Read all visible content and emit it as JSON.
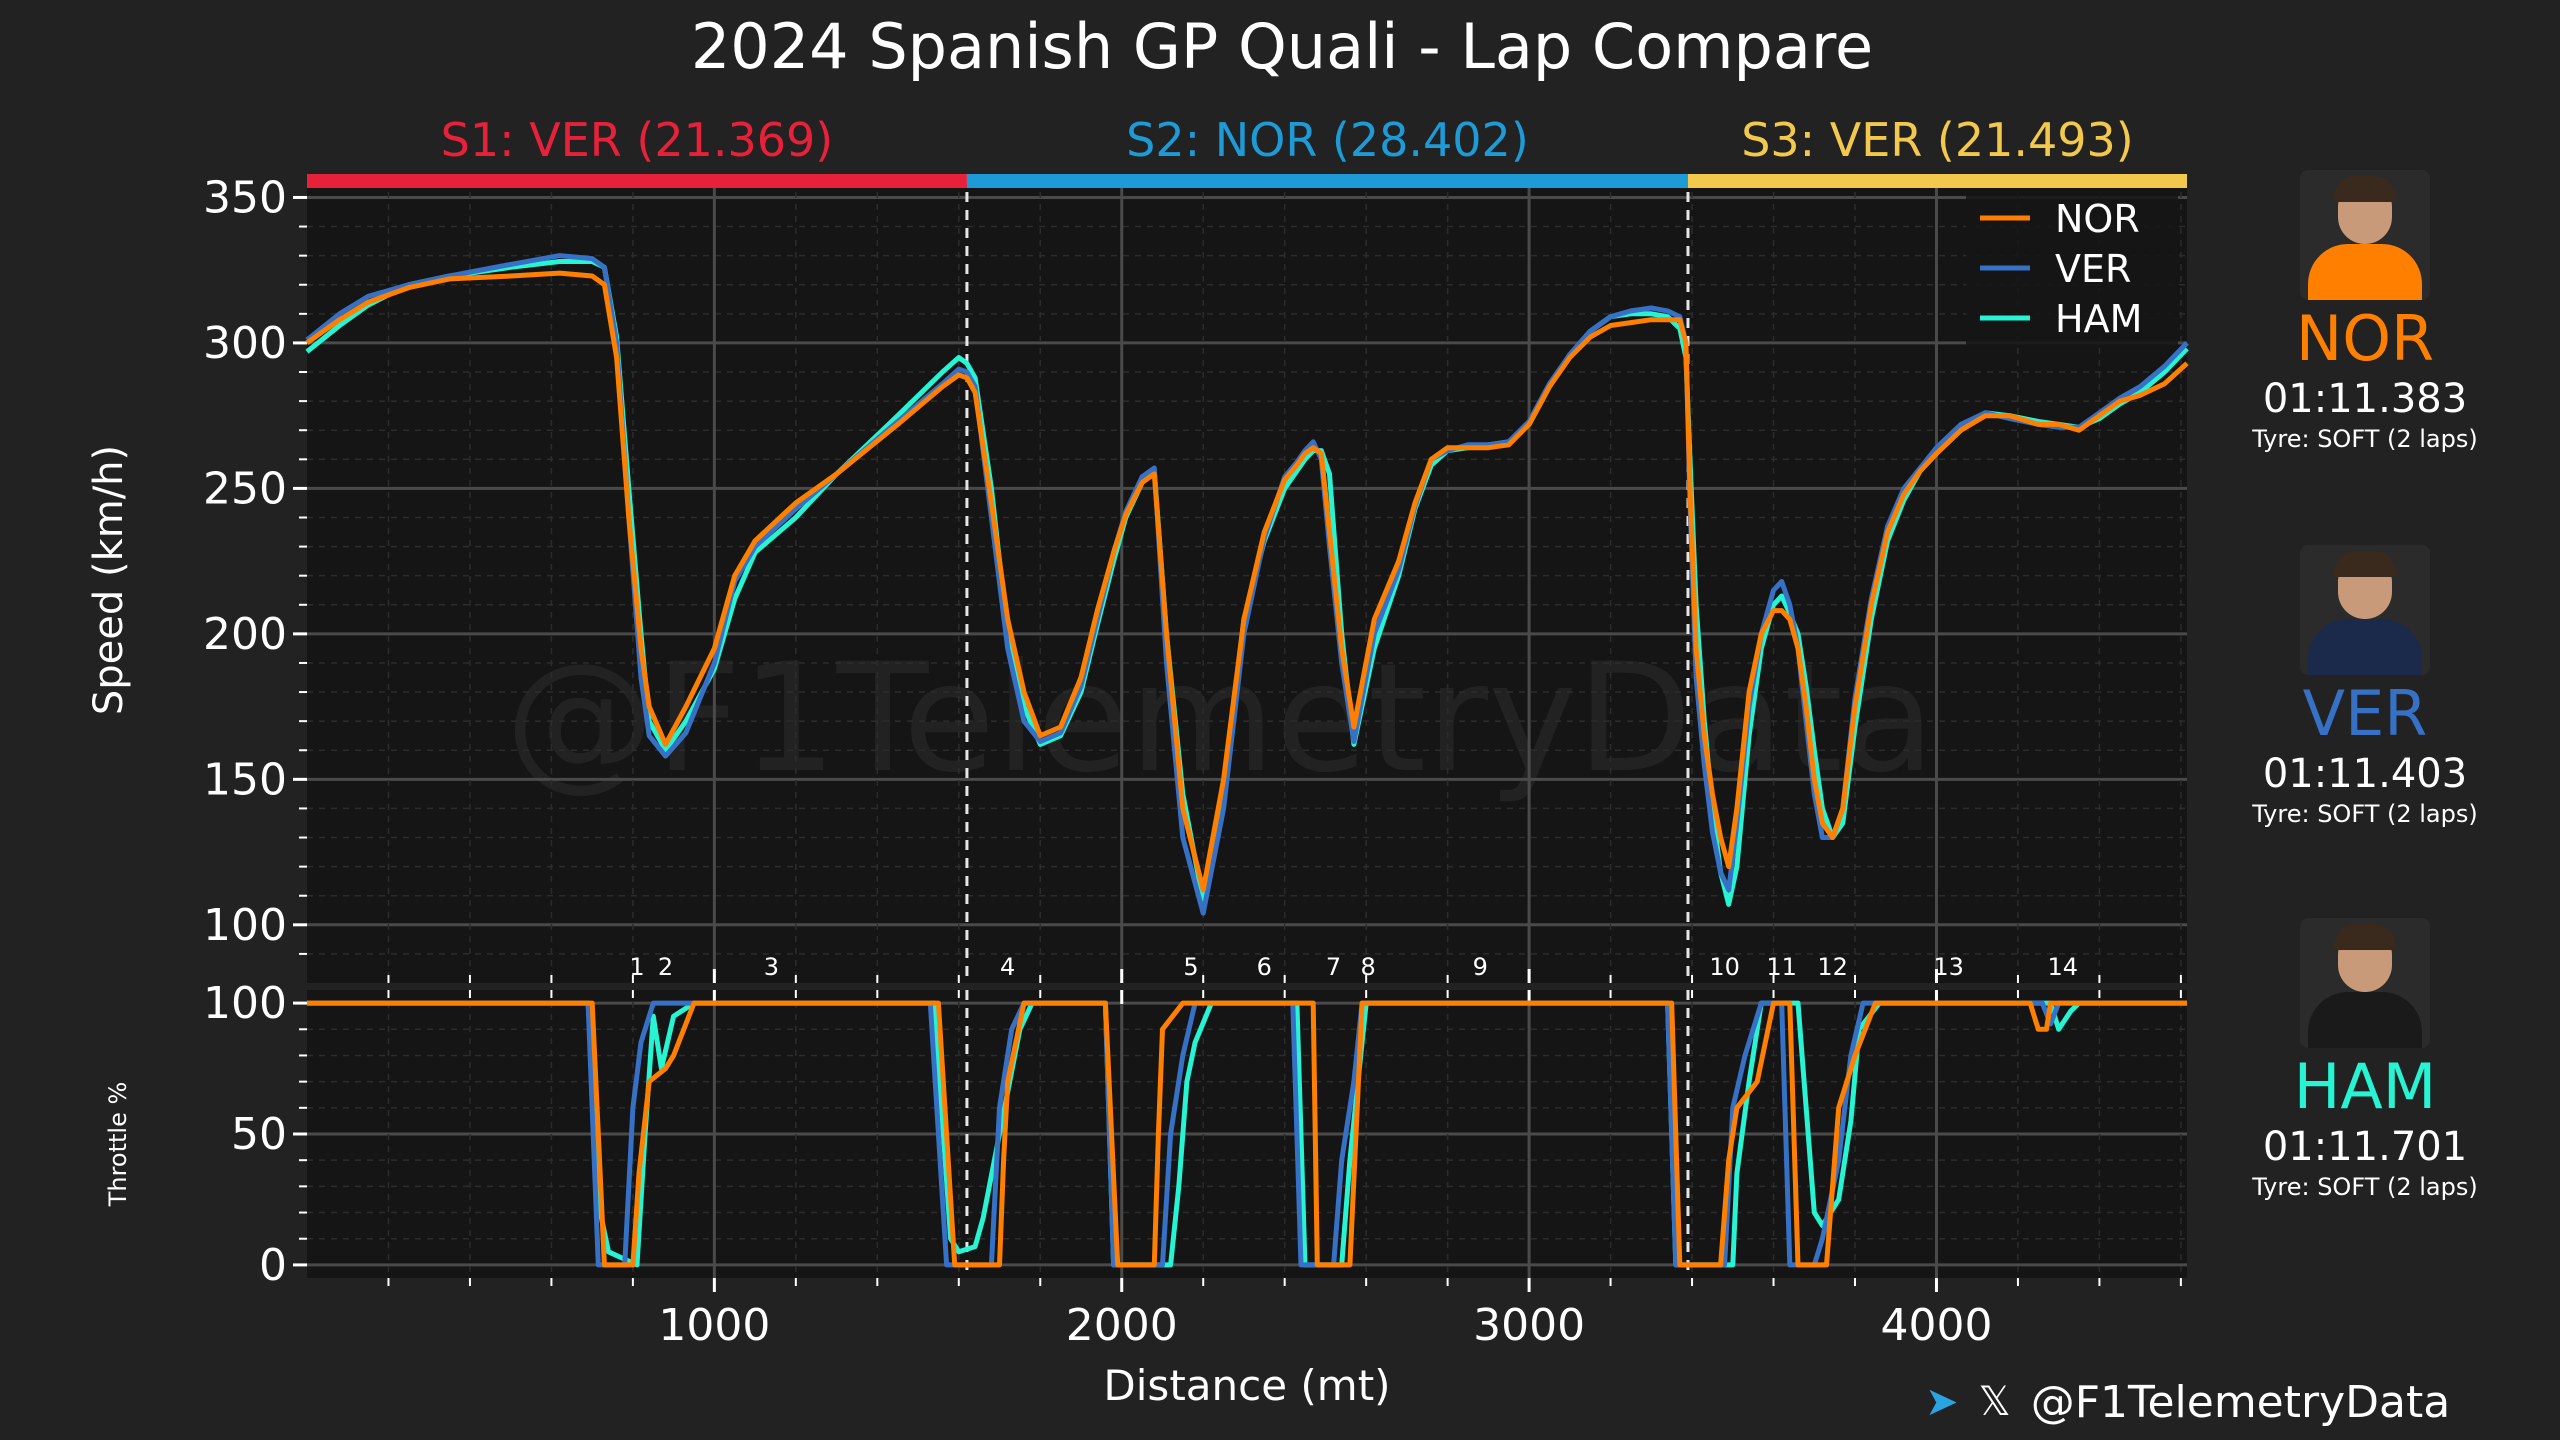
{
  "title": "2024 Spanish GP Quali - Lap Compare",
  "watermark": "@F1TelemetryData",
  "sectors": [
    {
      "label": "S1: VER (21.369)",
      "color": "#e8213a",
      "start": 0,
      "end": 1620
    },
    {
      "label": "S2: NOR (28.402)",
      "color": "#1e9ad6",
      "start": 1620,
      "end": 3390
    },
    {
      "label": "S3: VER (21.493)",
      "color": "#f2c94c",
      "start": 3390,
      "end": 4615
    }
  ],
  "drivers": [
    {
      "code": "NOR",
      "color": "#ff8000",
      "laptime": "01:11.383",
      "tyre": "Tyre: SOFT (2 laps)",
      "suit": "#ff8000"
    },
    {
      "code": "VER",
      "color": "#3671c6",
      "laptime": "01:11.403",
      "tyre": "Tyre: SOFT (2 laps)",
      "suit": "#1b2a4a"
    },
    {
      "code": "HAM",
      "color": "#27f4d2",
      "laptime": "01:11.701",
      "tyre": "Tyre: SOFT (2 laps)",
      "suit": "#1a1a1a"
    }
  ],
  "credit": {
    "handle": "@F1TelemetryData",
    "telegram_icon": "telegram-icon",
    "x_icon": "x-icon"
  },
  "chart_data": [
    {
      "type": "line",
      "title": "2024 Spanish GP Quali - Lap Compare",
      "xlabel": "",
      "ylabel": "Speed (km/h)",
      "xlim": [
        0,
        4615
      ],
      "ylim": [
        80,
        356
      ],
      "yticks": [
        100,
        150,
        200,
        250,
        300,
        350
      ],
      "grid": true,
      "legend": "top-right",
      "corners": [
        {
          "label": "1",
          "x": 810
        },
        {
          "label": "2",
          "x": 880
        },
        {
          "label": "3",
          "x": 1140
        },
        {
          "label": "4",
          "x": 1720
        },
        {
          "label": "5",
          "x": 2170
        },
        {
          "label": "6",
          "x": 2350
        },
        {
          "label": "7",
          "x": 2520
        },
        {
          "label": "8",
          "x": 2605
        },
        {
          "label": "9",
          "x": 2880
        },
        {
          "label": "10",
          "x": 3480
        },
        {
          "label": "11",
          "x": 3620
        },
        {
          "label": "12",
          "x": 3745
        },
        {
          "label": "13",
          "x": 4030
        },
        {
          "label": "14",
          "x": 4310
        }
      ],
      "series": [
        {
          "name": "NOR",
          "x": [
            0,
            80,
            150,
            250,
            350,
            500,
            620,
            700,
            730,
            760,
            790,
            820,
            840,
            880,
            930,
            1000,
            1050,
            1100,
            1200,
            1300,
            1450,
            1560,
            1600,
            1620,
            1640,
            1680,
            1720,
            1760,
            1800,
            1850,
            1900,
            1940,
            1980,
            2010,
            2050,
            2080,
            2110,
            2150,
            2200,
            2250,
            2300,
            2350,
            2400,
            2430,
            2450,
            2470,
            2490,
            2510,
            2540,
            2570,
            2620,
            2680,
            2720,
            2760,
            2800,
            2850,
            2900,
            2950,
            3000,
            3050,
            3100,
            3150,
            3200,
            3250,
            3300,
            3340,
            3370,
            3385,
            3395,
            3410,
            3430,
            3450,
            3470,
            3490,
            3510,
            3540,
            3570,
            3600,
            3620,
            3640,
            3660,
            3680,
            3700,
            3720,
            3745,
            3770,
            3800,
            3840,
            3880,
            3920,
            3960,
            4000,
            4060,
            4120,
            4180,
            4250,
            4300,
            4350,
            4400,
            4450,
            4500,
            4560,
            4615
          ],
          "y": [
            300,
            308,
            314,
            319,
            322,
            323,
            324,
            323,
            320,
            295,
            240,
            195,
            175,
            162,
            175,
            195,
            220,
            232,
            245,
            255,
            272,
            285,
            289,
            288,
            283,
            245,
            205,
            180,
            165,
            168,
            185,
            208,
            228,
            241,
            252,
            255,
            200,
            140,
            112,
            150,
            205,
            235,
            253,
            258,
            262,
            264,
            262,
            235,
            195,
            168,
            205,
            225,
            245,
            260,
            264,
            264,
            264,
            265,
            272,
            285,
            295,
            302,
            306,
            307,
            308,
            308,
            308,
            300,
            250,
            195,
            165,
            145,
            130,
            120,
            140,
            180,
            200,
            208,
            208,
            205,
            195,
            175,
            150,
            135,
            130,
            140,
            175,
            210,
            235,
            248,
            256,
            262,
            270,
            275,
            275,
            272,
            272,
            270,
            275,
            280,
            282,
            286,
            293
          ]
        },
        {
          "name": "VER",
          "x": [
            0,
            80,
            150,
            250,
            350,
            500,
            620,
            700,
            730,
            760,
            790,
            820,
            840,
            880,
            930,
            1000,
            1050,
            1100,
            1200,
            1300,
            1450,
            1560,
            1600,
            1620,
            1640,
            1680,
            1720,
            1760,
            1800,
            1850,
            1900,
            1940,
            1980,
            2010,
            2050,
            2080,
            2110,
            2150,
            2200,
            2250,
            2300,
            2350,
            2400,
            2430,
            2450,
            2470,
            2490,
            2510,
            2540,
            2570,
            2620,
            2680,
            2720,
            2760,
            2800,
            2850,
            2900,
            2950,
            3000,
            3050,
            3100,
            3150,
            3200,
            3250,
            3300,
            3340,
            3370,
            3385,
            3395,
            3410,
            3430,
            3450,
            3470,
            3490,
            3510,
            3540,
            3570,
            3600,
            3620,
            3640,
            3660,
            3680,
            3700,
            3720,
            3745,
            3770,
            3800,
            3840,
            3880,
            3920,
            3960,
            4000,
            4060,
            4120,
            4180,
            4250,
            4300,
            4350,
            4400,
            4450,
            4500,
            4560,
            4615
          ],
          "y": [
            301,
            310,
            316,
            320,
            323,
            327,
            330,
            329,
            326,
            300,
            240,
            185,
            165,
            158,
            166,
            190,
            218,
            230,
            243,
            255,
            273,
            286,
            291,
            290,
            285,
            240,
            195,
            170,
            163,
            166,
            182,
            205,
            228,
            242,
            254,
            257,
            190,
            130,
            104,
            140,
            200,
            233,
            254,
            259,
            263,
            266,
            260,
            230,
            190,
            163,
            200,
            222,
            244,
            260,
            263,
            265,
            265,
            266,
            273,
            286,
            296,
            304,
            309,
            311,
            312,
            311,
            309,
            300,
            245,
            185,
            155,
            132,
            118,
            112,
            135,
            175,
            200,
            215,
            218,
            210,
            195,
            170,
            145,
            130,
            130,
            140,
            178,
            212,
            237,
            250,
            257,
            264,
            272,
            276,
            274,
            272,
            271,
            271,
            276,
            281,
            285,
            292,
            300
          ]
        },
        {
          "name": "HAM",
          "x": [
            0,
            80,
            150,
            250,
            350,
            500,
            620,
            700,
            730,
            760,
            790,
            820,
            840,
            880,
            930,
            1000,
            1050,
            1100,
            1200,
            1300,
            1450,
            1560,
            1600,
            1620,
            1640,
            1680,
            1720,
            1760,
            1800,
            1850,
            1900,
            1940,
            1980,
            2010,
            2050,
            2080,
            2110,
            2150,
            2200,
            2250,
            2300,
            2350,
            2400,
            2430,
            2450,
            2470,
            2490,
            2510,
            2540,
            2570,
            2620,
            2680,
            2720,
            2760,
            2800,
            2850,
            2900,
            2950,
            3000,
            3050,
            3100,
            3150,
            3200,
            3250,
            3300,
            3340,
            3370,
            3385,
            3395,
            3410,
            3430,
            3450,
            3470,
            3490,
            3510,
            3540,
            3570,
            3600,
            3620,
            3640,
            3660,
            3680,
            3700,
            3720,
            3745,
            3770,
            3800,
            3840,
            3880,
            3920,
            3960,
            4000,
            4060,
            4120,
            4180,
            4250,
            4300,
            4350,
            4400,
            4450,
            4500,
            4560,
            4615
          ],
          "y": [
            297,
            306,
            313,
            320,
            323,
            326,
            328,
            328,
            326,
            302,
            250,
            200,
            170,
            160,
            170,
            188,
            212,
            228,
            240,
            255,
            275,
            290,
            295,
            293,
            288,
            250,
            200,
            175,
            162,
            165,
            180,
            203,
            225,
            240,
            252,
            256,
            200,
            145,
            108,
            145,
            205,
            232,
            250,
            256,
            260,
            263,
            263,
            255,
            200,
            162,
            195,
            220,
            243,
            258,
            263,
            264,
            265,
            266,
            272,
            285,
            296,
            304,
            309,
            310,
            310,
            309,
            305,
            295,
            260,
            210,
            170,
            140,
            118,
            107,
            120,
            165,
            195,
            210,
            213,
            207,
            200,
            182,
            160,
            140,
            130,
            135,
            168,
            205,
            232,
            246,
            256,
            262,
            270,
            276,
            275,
            273,
            272,
            271,
            274,
            279,
            283,
            290,
            298
          ]
        }
      ]
    },
    {
      "type": "line",
      "xlabel": "Distance (mt)",
      "ylabel": "Throttle %",
      "xlim": [
        0,
        4615
      ],
      "ylim": [
        -5,
        105
      ],
      "yticks": [
        0,
        50,
        100
      ],
      "xticks": [
        1000,
        2000,
        3000,
        4000
      ],
      "grid": true,
      "series": [
        {
          "name": "NOR",
          "x": [
            0,
            700,
            730,
            800,
            815,
            840,
            880,
            900,
            950,
            1000,
            1550,
            1590,
            1700,
            1710,
            1720,
            1760,
            1960,
            1990,
            2080,
            2090,
            2100,
            2150,
            2470,
            2480,
            2560,
            2590,
            3350,
            3370,
            3470,
            3490,
            3510,
            3560,
            3600,
            3640,
            3660,
            3730,
            3750,
            3760,
            3800,
            3850,
            4230,
            4240,
            4250,
            4270,
            4280,
            4320,
            4340,
            4615
          ],
          "y": [
            100,
            100,
            0,
            0,
            35,
            70,
            75,
            80,
            100,
            100,
            100,
            0,
            0,
            40,
            70,
            100,
            100,
            0,
            0,
            50,
            90,
            100,
            100,
            0,
            0,
            100,
            100,
            0,
            0,
            40,
            60,
            70,
            100,
            100,
            0,
            0,
            40,
            60,
            80,
            100,
            100,
            95,
            90,
            90,
            100,
            100,
            100,
            100
          ]
        },
        {
          "name": "VER",
          "x": [
            0,
            690,
            715,
            780,
            800,
            820,
            850,
            880,
            960,
            1530,
            1570,
            1680,
            1700,
            1730,
            1760,
            1960,
            1980,
            2100,
            2120,
            2150,
            2180,
            2200,
            2420,
            2440,
            2520,
            2540,
            2570,
            2590,
            3340,
            3360,
            3480,
            3500,
            3530,
            3570,
            3590,
            3620,
            3640,
            3700,
            3720,
            3760,
            3790,
            3820,
            3850,
            4260,
            4280,
            4300,
            4320,
            4615
          ],
          "y": [
            100,
            100,
            0,
            0,
            60,
            85,
            100,
            100,
            100,
            100,
            0,
            0,
            60,
            90,
            100,
            100,
            0,
            0,
            50,
            80,
            100,
            100,
            100,
            0,
            0,
            40,
            70,
            100,
            100,
            0,
            0,
            60,
            80,
            100,
            100,
            100,
            0,
            0,
            10,
            40,
            80,
            100,
            100,
            100,
            92,
            100,
            100,
            100
          ]
        },
        {
          "name": "HAM",
          "x": [
            0,
            690,
            720,
            740,
            810,
            830,
            850,
            870,
            900,
            950,
            1000,
            1540,
            1580,
            1600,
            1640,
            1660,
            1700,
            1750,
            1780,
            1800,
            1960,
            1980,
            2120,
            2140,
            2160,
            2180,
            2220,
            2430,
            2450,
            2540,
            2560,
            2580,
            2600,
            2640,
            3340,
            3360,
            3500,
            3510,
            3540,
            3570,
            3600,
            3640,
            3660,
            3700,
            3720,
            3740,
            3760,
            3790,
            3810,
            3860,
            4280,
            4300,
            4330,
            4350,
            4615
          ],
          "y": [
            100,
            100,
            20,
            5,
            0,
            50,
            95,
            75,
            95,
            100,
            100,
            100,
            10,
            5,
            7,
            18,
            50,
            90,
            100,
            100,
            100,
            0,
            0,
            30,
            70,
            85,
            100,
            100,
            0,
            0,
            40,
            70,
            100,
            100,
            100,
            0,
            0,
            35,
            70,
            100,
            100,
            100,
            100,
            20,
            15,
            20,
            25,
            55,
            90,
            100,
            100,
            90,
            97,
            100,
            100
          ]
        }
      ]
    }
  ]
}
